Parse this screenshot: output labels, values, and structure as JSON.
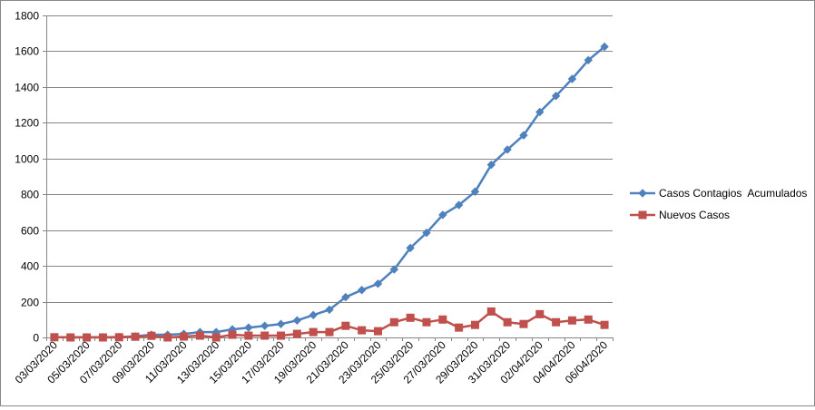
{
  "chart_data": {
    "type": "line",
    "title": "",
    "xlabel": "",
    "ylabel": "",
    "ylim": [
      0,
      1800
    ],
    "yticks": [
      0,
      200,
      400,
      600,
      800,
      1000,
      1200,
      1400,
      1600,
      1800
    ],
    "grid": "horizontal",
    "legend_position": "right",
    "categories": [
      "03/03/2020",
      "04/03/2020",
      "05/03/2020",
      "06/03/2020",
      "07/03/2020",
      "08/03/2020",
      "09/03/2020",
      "10/03/2020",
      "11/03/2020",
      "12/03/2020",
      "13/03/2020",
      "14/03/2020",
      "15/03/2020",
      "16/03/2020",
      "17/03/2020",
      "18/03/2020",
      "19/03/2020",
      "20/03/2020",
      "21/03/2020",
      "22/03/2020",
      "23/03/2020",
      "24/03/2020",
      "25/03/2020",
      "26/03/2020",
      "27/03/2020",
      "28/03/2020",
      "29/03/2020",
      "30/03/2020",
      "31/03/2020",
      "01/04/2020",
      "02/04/2020",
      "03/04/2020",
      "04/04/2020",
      "05/04/2020",
      "06/04/2020"
    ],
    "tick_labels": [
      "03/03/2020",
      "05/03/2020",
      "07/03/2020",
      "09/03/2020",
      "11/03/2020",
      "13/03/2020",
      "15/03/2020",
      "17/03/2020",
      "19/03/2020",
      "21/03/2020",
      "23/03/2020",
      "25/03/2020",
      "27/03/2020",
      "29/03/2020",
      "31/03/2020",
      "02/04/2020",
      "04/04/2020",
      "06/04/2020"
    ],
    "series": [
      {
        "name": "Casos Contagios  Acumulados",
        "color": "#4F81BD",
        "marker": "diamond",
        "values": [
          1,
          1,
          1,
          1,
          2,
          6,
          15,
          15,
          20,
          30,
          30,
          45,
          55,
          65,
          75,
          95,
          125,
          155,
          225,
          265,
          300,
          380,
          500,
          585,
          685,
          740,
          815,
          965,
          1050,
          1130,
          1260,
          1350,
          1445,
          1550,
          1625
        ]
      },
      {
        "name": "Nuevos Casos",
        "color": "#C0504D",
        "marker": "square",
        "values": [
          1,
          0,
          0,
          0,
          1,
          4,
          9,
          0,
          5,
          10,
          0,
          15,
          10,
          10,
          10,
          20,
          30,
          30,
          65,
          40,
          35,
          85,
          110,
          85,
          100,
          55,
          70,
          145,
          85,
          75,
          130,
          85,
          95,
          100,
          70
        ]
      }
    ]
  }
}
